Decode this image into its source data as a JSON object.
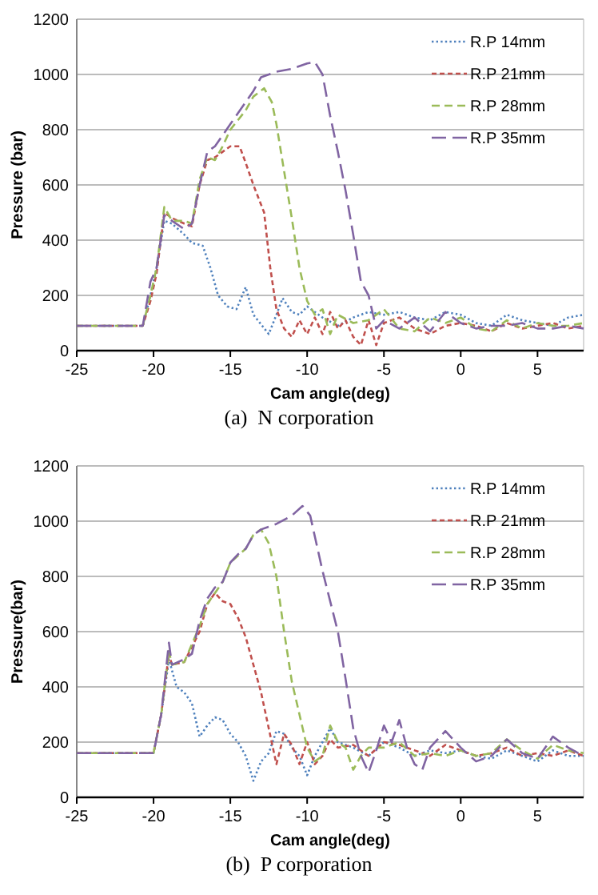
{
  "chart_data": [
    {
      "type": "line",
      "xlabel": "Cam angle(deg)",
      "ylabel": "Pressure (bar)",
      "annotations": [
        "(a)  N corporation"
      ],
      "xlim": [
        -25,
        8
      ],
      "xticks": [
        -25,
        -20,
        -15,
        -10,
        -5,
        0,
        5
      ],
      "ylim": [
        0,
        1200
      ],
      "yticks": [
        0,
        200,
        400,
        600,
        800,
        1000,
        1200
      ],
      "grid": "y",
      "legend": "top right",
      "series": [
        {
          "name": "R.P 14mm",
          "color": "#4f81bd",
          "line_style": "dotted",
          "x": [
            -25,
            -20.7,
            -20.2,
            -19.8,
            -19.3,
            -18.8,
            -18,
            -17.5,
            -16.8,
            -16.3,
            -15.8,
            -15.2,
            -14.6,
            -14,
            -13.5,
            -12.5,
            -12,
            -11.6,
            -11,
            -10.5,
            -10,
            -9,
            -8,
            -7,
            -6,
            -5,
            -4,
            -3,
            -2,
            -1,
            0,
            1,
            2,
            3,
            4,
            5,
            6,
            7,
            8
          ],
          "values": [
            90,
            90,
            200,
            300,
            470,
            460,
            420,
            390,
            380,
            300,
            200,
            160,
            150,
            230,
            130,
            60,
            130,
            190,
            140,
            130,
            160,
            120,
            90,
            120,
            140,
            130,
            140,
            120,
            110,
            140,
            130,
            100,
            90,
            130,
            110,
            100,
            90,
            120,
            130
          ]
        },
        {
          "name": "R.P 21mm",
          "color": "#c0504d",
          "line_style": "dashed",
          "x": [
            -25,
            -20.7,
            -20.2,
            -19.8,
            -19.3,
            -18.8,
            -18,
            -17.5,
            -17,
            -16.5,
            -16,
            -15,
            -14.4,
            -14,
            -13.5,
            -12.8,
            -12.4,
            -12,
            -11.5,
            -11,
            -10.5,
            -10,
            -9.5,
            -9,
            -8.5,
            -8,
            -7.5,
            -7,
            -6.5,
            -6,
            -5.5,
            -5,
            -4,
            -3,
            -2,
            -1,
            0,
            1,
            2,
            3,
            4,
            5,
            6,
            7,
            8
          ],
          "values": [
            90,
            90,
            180,
            280,
            500,
            480,
            460,
            450,
            600,
            690,
            700,
            740,
            740,
            680,
            600,
            500,
            300,
            150,
            80,
            50,
            110,
            60,
            120,
            60,
            140,
            80,
            110,
            50,
            20,
            110,
            20,
            100,
            120,
            80,
            60,
            90,
            100,
            90,
            70,
            100,
            80,
            90,
            100,
            80,
            90
          ]
        },
        {
          "name": "R.P 28mm",
          "color": "#9bbb59",
          "line_style": "dashed",
          "x": [
            -25,
            -20.7,
            -20.2,
            -19.8,
            -19.3,
            -18.8,
            -18,
            -17.5,
            -17,
            -16.5,
            -16,
            -15.5,
            -15,
            -14,
            -13.5,
            -12.8,
            -12.3,
            -12,
            -11.5,
            -11,
            -10.5,
            -10,
            -9.5,
            -9,
            -8.5,
            -8,
            -7,
            -6,
            -5,
            -4,
            -3,
            -2,
            -1,
            0,
            1,
            2,
            3,
            4,
            5,
            6,
            7,
            8
          ],
          "values": [
            90,
            90,
            200,
            300,
            520,
            470,
            470,
            460,
            620,
            700,
            690,
            740,
            800,
            870,
            920,
            950,
            900,
            820,
            650,
            480,
            300,
            180,
            130,
            150,
            60,
            130,
            100,
            110,
            150,
            80,
            70,
            120,
            100,
            120,
            80,
            70,
            110,
            80,
            100,
            90,
            90,
            100
          ]
        },
        {
          "name": "R.P 35mm",
          "color": "#8064a2",
          "line_style": "dashed",
          "x": [
            -25,
            -20.7,
            -20.2,
            -19.8,
            -19.3,
            -18.8,
            -18,
            -17.5,
            -17,
            -16.5,
            -16,
            -15,
            -14,
            -13.5,
            -13,
            -12,
            -11,
            -10,
            -9.5,
            -9,
            -8.5,
            -8,
            -7.5,
            -7,
            -6.5,
            -6,
            -5.5,
            -5,
            -4,
            -3,
            -2,
            -1,
            0,
            1,
            2,
            3,
            4,
            5,
            6,
            7,
            8
          ],
          "values": [
            90,
            90,
            250,
            300,
            490,
            470,
            440,
            460,
            600,
            720,
            740,
            820,
            900,
            940,
            990,
            1010,
            1020,
            1040,
            1045,
            1000,
            850,
            720,
            580,
            420,
            250,
            200,
            80,
            110,
            80,
            120,
            70,
            140,
            100,
            80,
            90,
            90,
            100,
            80,
            80,
            90,
            80
          ]
        }
      ]
    },
    {
      "type": "line",
      "xlabel": "Cam angle(deg)",
      "ylabel": "Pressure(bar)",
      "annotations": [
        "(b)  P corporation"
      ],
      "xlim": [
        -25,
        8
      ],
      "xticks": [
        -25,
        -20,
        -15,
        -10,
        -5,
        0,
        5
      ],
      "ylim": [
        0,
        1200
      ],
      "yticks": [
        0,
        200,
        400,
        600,
        800,
        1000,
        1200
      ],
      "grid": "y",
      "legend": "top right",
      "series": [
        {
          "name": "R.P 14mm",
          "color": "#4f81bd",
          "line_style": "dotted",
          "x": [
            -25,
            -20,
            -19.5,
            -19,
            -18.5,
            -18,
            -17.5,
            -17,
            -16.5,
            -16,
            -15.5,
            -15,
            -14.5,
            -14,
            -13.5,
            -13,
            -12.5,
            -12,
            -11.5,
            -11,
            -10.5,
            -10,
            -9.5,
            -9,
            -8.5,
            -8,
            -7,
            -6,
            -5,
            -4,
            -3,
            -2,
            -1,
            0,
            1,
            2,
            3,
            4,
            5,
            6,
            7,
            8
          ],
          "values": [
            160,
            160,
            300,
            500,
            400,
            380,
            340,
            220,
            260,
            290,
            280,
            230,
            200,
            150,
            60,
            130,
            160,
            240,
            230,
            180,
            150,
            80,
            150,
            200,
            250,
            200,
            180,
            150,
            200,
            180,
            150,
            170,
            160,
            170,
            150,
            140,
            170,
            150,
            130,
            170,
            150,
            150
          ]
        },
        {
          "name": "R.P 21mm",
          "color": "#c0504d",
          "line_style": "dashed",
          "x": [
            -25,
            -20,
            -19.5,
            -19,
            -18.8,
            -18,
            -17,
            -16.5,
            -16,
            -15.5,
            -15,
            -14.5,
            -14,
            -13.5,
            -13,
            -12.5,
            -12,
            -11.5,
            -11,
            -10.5,
            -10,
            -9.5,
            -9,
            -8.5,
            -8,
            -7,
            -6,
            -5,
            -4,
            -3,
            -2,
            -1,
            0,
            1,
            2,
            3,
            4,
            5,
            6,
            7,
            8
          ],
          "values": [
            160,
            160,
            300,
            520,
            480,
            490,
            600,
            700,
            740,
            710,
            700,
            650,
            580,
            480,
            380,
            250,
            120,
            230,
            190,
            120,
            200,
            120,
            150,
            210,
            180,
            190,
            150,
            200,
            190,
            170,
            150,
            190,
            170,
            150,
            160,
            180,
            150,
            160,
            150,
            170,
            150
          ]
        },
        {
          "name": "R.P 28mm",
          "color": "#9bbb59",
          "line_style": "dashed",
          "x": [
            -25,
            -20,
            -19.5,
            -19,
            -18.8,
            -18,
            -17,
            -16.5,
            -16,
            -15.5,
            -15,
            -14,
            -13.5,
            -13,
            -12.5,
            -12,
            -11.5,
            -11,
            -10.5,
            -10,
            -9.5,
            -9,
            -8.5,
            -8,
            -7.5,
            -7,
            -6.5,
            -6,
            -5,
            -4,
            -3,
            -2,
            -1,
            0,
            1,
            2,
            3,
            4,
            5,
            6,
            7,
            8
          ],
          "values": [
            160,
            160,
            300,
            530,
            480,
            490,
            620,
            700,
            740,
            780,
            850,
            900,
            950,
            970,
            920,
            800,
            600,
            420,
            300,
            180,
            130,
            150,
            260,
            200,
            180,
            100,
            150,
            180,
            180,
            200,
            150,
            160,
            150,
            170,
            150,
            160,
            210,
            170,
            140,
            190,
            170,
            160
          ]
        },
        {
          "name": "R.P 35mm",
          "color": "#8064a2",
          "line_style": "dashed",
          "x": [
            -25,
            -20,
            -19.5,
            -19,
            -18.8,
            -18,
            -17.5,
            -17,
            -16.5,
            -16,
            -15.5,
            -15,
            -14.5,
            -14,
            -13.5,
            -13,
            -12,
            -11,
            -10.3,
            -9.8,
            -9,
            -8,
            -7.5,
            -7,
            -6.5,
            -6,
            -5.5,
            -5,
            -4.5,
            -4,
            -3.5,
            -3,
            -2.5,
            -2,
            -1,
            0,
            1,
            2,
            3,
            4,
            5,
            6,
            7,
            8
          ],
          "values": [
            160,
            160,
            300,
            560,
            480,
            500,
            520,
            640,
            720,
            760,
            780,
            850,
            880,
            900,
            950,
            970,
            990,
            1020,
            1055,
            1020,
            820,
            600,
            430,
            250,
            150,
            90,
            170,
            260,
            200,
            280,
            180,
            120,
            100,
            180,
            240,
            180,
            130,
            150,
            210,
            160,
            140,
            220,
            180,
            150
          ]
        }
      ]
    }
  ]
}
